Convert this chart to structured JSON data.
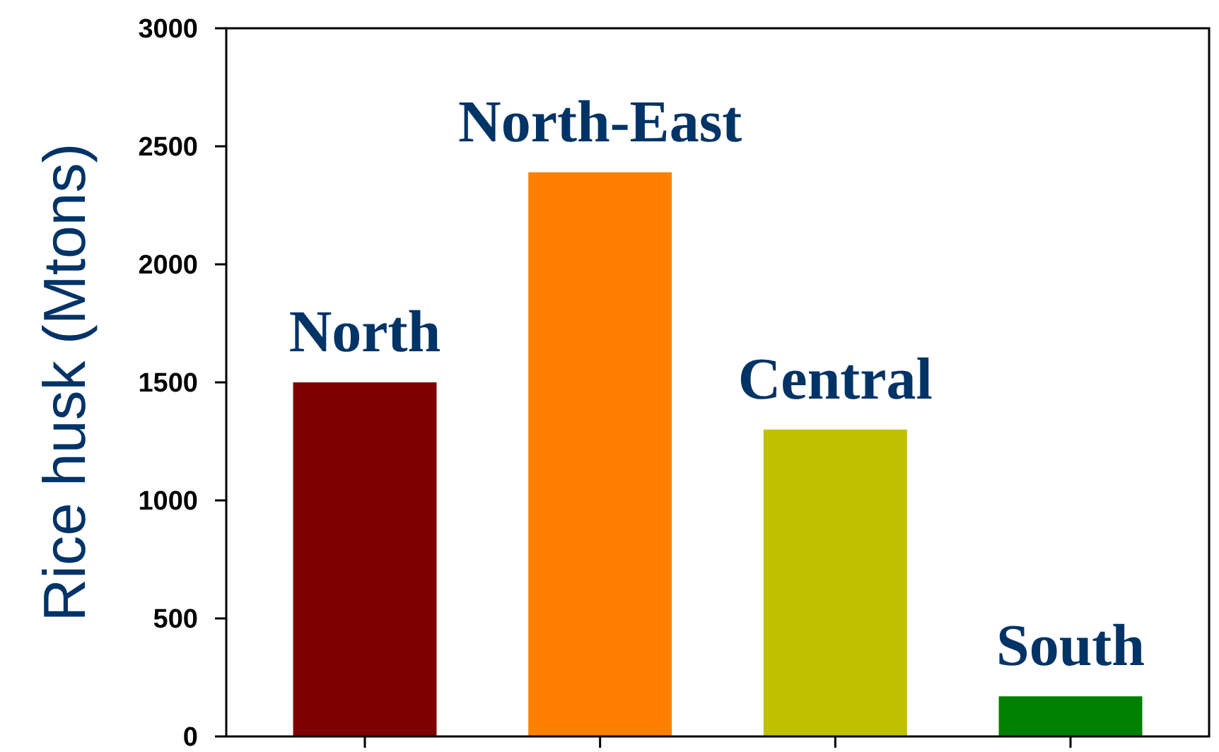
{
  "chart_data": {
    "type": "bar",
    "ylabel": "Rice husk (Mtons)",
    "categories": [
      "North",
      "North-East",
      "Central",
      "South"
    ],
    "values": [
      1500,
      2390,
      1300,
      170
    ],
    "colors": [
      "#7f0000",
      "#ff8000",
      "#c0c000",
      "#008000"
    ],
    "ylim": [
      0,
      3000
    ],
    "yticks": [
      0,
      500,
      1000,
      1500,
      2000,
      2500,
      3000
    ],
    "grid": false
  }
}
